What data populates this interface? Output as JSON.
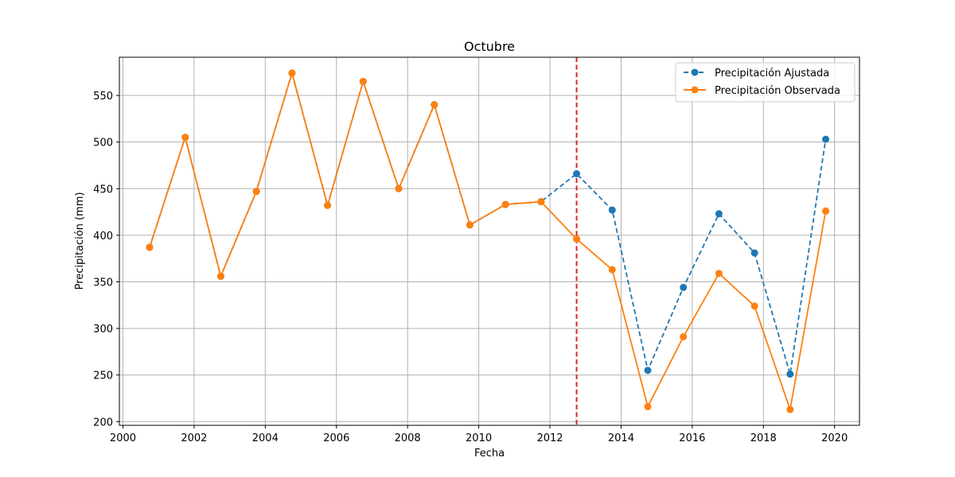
{
  "chart_data": {
    "type": "line",
    "title": "Octubre",
    "xlabel": "Fecha",
    "ylabel": "Precipitación (mm)",
    "xlim": [
      1999.9,
      2020.7
    ],
    "ylim": [
      196,
      591
    ],
    "xticks": [
      2000,
      2002,
      2004,
      2006,
      2008,
      2010,
      2012,
      2014,
      2016,
      2018,
      2020
    ],
    "yticks": [
      200,
      250,
      300,
      350,
      400,
      450,
      500,
      550
    ],
    "grid": true,
    "legend_position": "top-right",
    "vline": {
      "x": 2012.75,
      "color": "#d62728",
      "style": "dashed"
    },
    "x": [
      2000.75,
      2001.75,
      2002.75,
      2003.75,
      2004.75,
      2005.75,
      2006.75,
      2007.75,
      2008.75,
      2009.75,
      2010.75,
      2011.75,
      2012.75,
      2013.75,
      2014.75,
      2015.75,
      2016.75,
      2017.75,
      2018.75,
      2019.75
    ],
    "series": [
      {
        "name": "Precipitación Ajustada",
        "color": "#1f77b4",
        "style": "dashed",
        "marker": "circle",
        "values": [
          387,
          505,
          356,
          447,
          574,
          432,
          565,
          450,
          540,
          411,
          433,
          436,
          466,
          427,
          255,
          344,
          423,
          381,
          251,
          503
        ]
      },
      {
        "name": "Precipitación Observada",
        "color": "#ff7f0e",
        "style": "solid",
        "marker": "circle",
        "values": [
          387,
          505,
          356,
          447,
          574,
          432,
          565,
          450,
          540,
          411,
          433,
          436,
          396,
          363,
          216,
          291,
          359,
          324,
          213,
          426
        ]
      }
    ]
  }
}
